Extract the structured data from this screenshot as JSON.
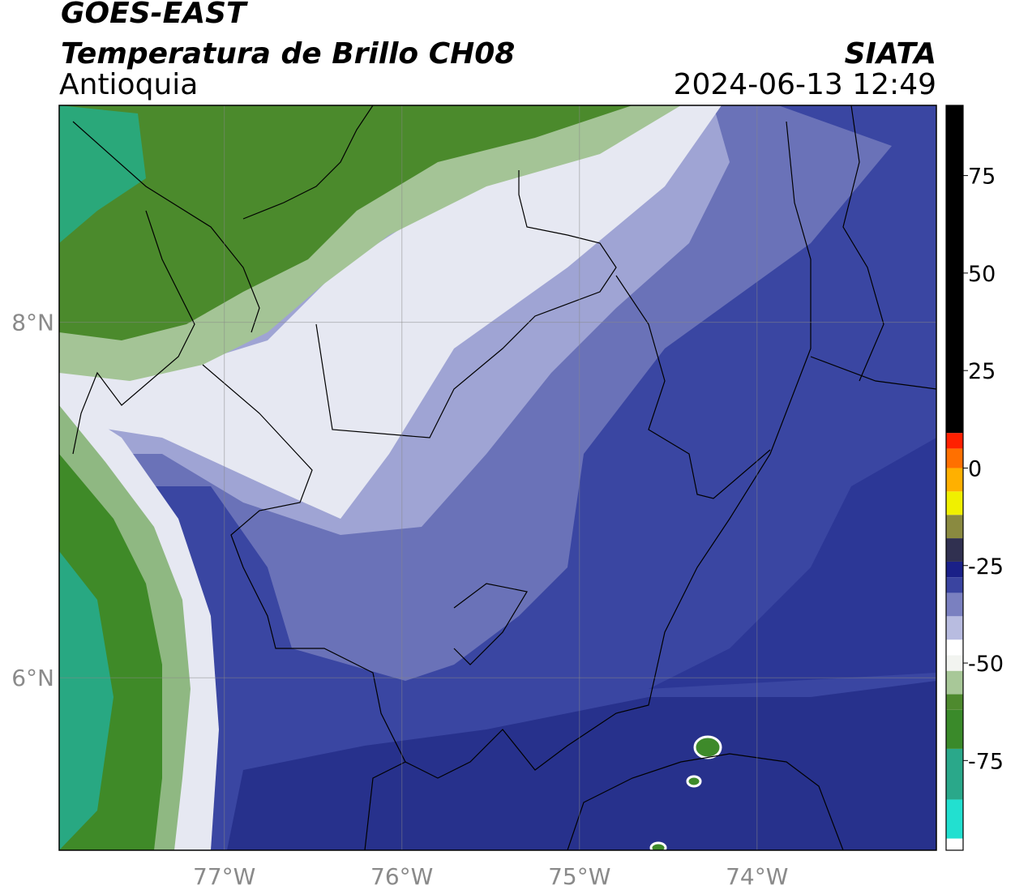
{
  "header": {
    "line1": "GOES-EAST",
    "line2": "Temperatura de Brillo CH08",
    "region": "Antioquia",
    "source": "SIATA",
    "datetime": "2024-06-13 12:49"
  },
  "map": {
    "xlim": [
      -77.93,
      -72.99
    ],
    "ylim": [
      5.03,
      9.22
    ],
    "xticks": [
      {
        "value": -77,
        "label": "77°W"
      },
      {
        "value": -76,
        "label": "76°W"
      },
      {
        "value": -75,
        "label": "75°W"
      },
      {
        "value": -74,
        "label": "74°W"
      }
    ],
    "yticks": [
      {
        "value": 8,
        "label": "8°N"
      },
      {
        "value": 6,
        "label": "6°N"
      }
    ],
    "grid": true
  },
  "colorbar": {
    "lim": [
      -98,
      93
    ],
    "ticks": [
      75,
      50,
      25,
      0,
      -25,
      -50,
      -75
    ],
    "stops": [
      {
        "value": -98,
        "color": "#ffffff"
      },
      {
        "value": -95,
        "color": "#22e0d0"
      },
      {
        "value": -85,
        "color": "#2aa88a"
      },
      {
        "value": -72,
        "color": "#3a8a2a"
      },
      {
        "value": -62,
        "color": "#4e8a2e"
      },
      {
        "value": -58,
        "color": "#a8c898"
      },
      {
        "value": -52,
        "color": "#f2f4f0"
      },
      {
        "value": -48,
        "color": "#ffffff"
      },
      {
        "value": -44,
        "color": "#b8bce0"
      },
      {
        "value": -38,
        "color": "#7a80c0"
      },
      {
        "value": -32,
        "color": "#3a44a0"
      },
      {
        "value": -28,
        "color": "#1a2088"
      },
      {
        "value": -24,
        "color": "#303050"
      },
      {
        "value": -18,
        "color": "#8a8a40"
      },
      {
        "value": -12,
        "color": "#f0f000"
      },
      {
        "value": -6,
        "color": "#ffb000"
      },
      {
        "value": 0,
        "color": "#ff7000"
      },
      {
        "value": 5,
        "color": "#ff2000"
      },
      {
        "value": 9,
        "color": "#000000"
      }
    ]
  }
}
